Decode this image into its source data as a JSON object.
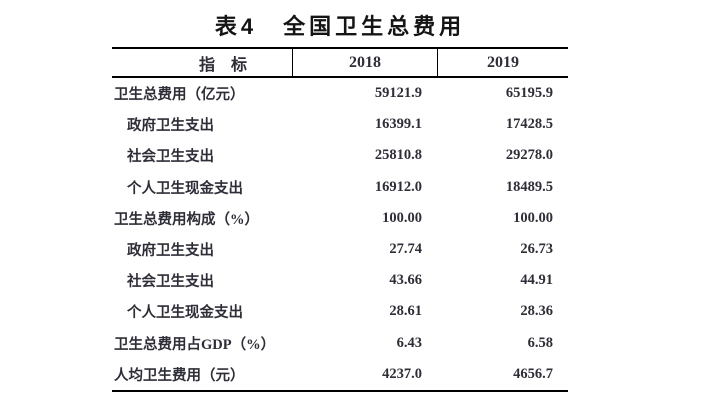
{
  "title": "表4　全国卫生总费用",
  "chart_data": {
    "type": "table",
    "title": "表4　全国卫生总费用",
    "columns": [
      "指　标",
      "2018",
      "2019"
    ],
    "rows": [
      {
        "label": "卫生总费用（亿元）",
        "indent": false,
        "values": [
          "59121.9",
          "65195.9"
        ]
      },
      {
        "label": "政府卫生支出",
        "indent": true,
        "values": [
          "16399.1",
          "17428.5"
        ]
      },
      {
        "label": "社会卫生支出",
        "indent": true,
        "values": [
          "25810.8",
          "29278.0"
        ]
      },
      {
        "label": "个人卫生现金支出",
        "indent": true,
        "values": [
          "16912.0",
          "18489.5"
        ]
      },
      {
        "label": "卫生总费用构成（%）",
        "indent": false,
        "values": [
          "100.00",
          "100.00"
        ]
      },
      {
        "label": "政府卫生支出",
        "indent": true,
        "values": [
          "27.74",
          "26.73"
        ]
      },
      {
        "label": "社会卫生支出",
        "indent": true,
        "values": [
          "43.66",
          "44.91"
        ]
      },
      {
        "label": "个人卫生现金支出",
        "indent": true,
        "values": [
          "28.61",
          "28.36"
        ]
      },
      {
        "label": "卫生总费用占GDP（%）",
        "indent": false,
        "values": [
          "6.43",
          "6.58"
        ]
      },
      {
        "label": "人均卫生费用（元）",
        "indent": false,
        "values": [
          "4237.0",
          "4656.7"
        ]
      }
    ],
    "text_color": "#2e2e38",
    "border_color": "#000000",
    "legend_position": "none",
    "grid": "header-only"
  }
}
